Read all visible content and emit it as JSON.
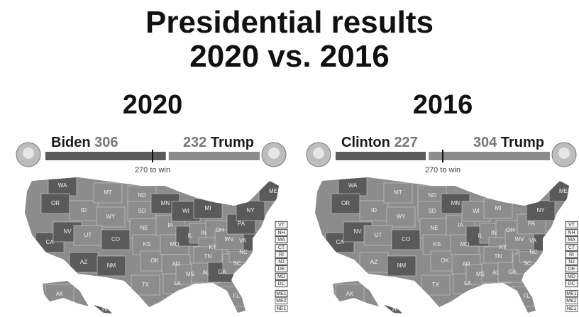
{
  "title": [
    "Presidential results",
    "2020 vs. 2016"
  ],
  "panels": [
    {
      "year": "2020",
      "left": {
        "name": "Biden",
        "votes": 306,
        "color": "#5a5a5a"
      },
      "right": {
        "votes": 232,
        "name": "Trump",
        "color": "#8c8c8c"
      },
      "threshold": "270 to win",
      "states": [
        {
          "label": "WA",
          "color": "#5a5a5a"
        },
        {
          "label": "OR",
          "color": "#5a5a5a"
        },
        {
          "label": "CA",
          "color": "#5a5a5a"
        },
        {
          "label": "NV",
          "color": "#5a5a5a"
        },
        {
          "label": "ID",
          "color": "#8c8c8c"
        },
        {
          "label": "MT",
          "color": "#8c8c8c"
        },
        {
          "label": "WY",
          "color": "#8c8c8c"
        },
        {
          "label": "UT",
          "color": "#8c8c8c"
        },
        {
          "label": "AZ",
          "color": "#5a5a5a"
        },
        {
          "label": "CO",
          "color": "#5a5a5a"
        },
        {
          "label": "NM",
          "color": "#5a5a5a"
        },
        {
          "label": "ND",
          "color": "#8c8c8c"
        },
        {
          "label": "SD",
          "color": "#8c8c8c"
        },
        {
          "label": "NE",
          "color": "#8c8c8c"
        },
        {
          "label": "KS",
          "color": "#8c8c8c"
        },
        {
          "label": "OK",
          "color": "#8c8c8c"
        },
        {
          "label": "TX",
          "color": "#8c8c8c"
        },
        {
          "label": "MN",
          "color": "#5a5a5a"
        },
        {
          "label": "IA",
          "color": "#8c8c8c"
        },
        {
          "label": "MO",
          "color": "#8c8c8c"
        },
        {
          "label": "AR",
          "color": "#8c8c8c"
        },
        {
          "label": "LA",
          "color": "#8c8c8c"
        },
        {
          "label": "WI",
          "color": "#5a5a5a"
        },
        {
          "label": "IL",
          "color": "#5a5a5a"
        },
        {
          "label": "MI",
          "color": "#5a5a5a"
        },
        {
          "label": "IN",
          "color": "#8c8c8c"
        },
        {
          "label": "OH",
          "color": "#8c8c8c"
        },
        {
          "label": "KY",
          "color": "#8c8c8c"
        },
        {
          "label": "TN",
          "color": "#8c8c8c"
        },
        {
          "label": "MS",
          "color": "#8c8c8c"
        },
        {
          "label": "AL",
          "color": "#8c8c8c"
        },
        {
          "label": "GA",
          "color": "#5a5a5a"
        },
        {
          "label": "FL",
          "color": "#8c8c8c"
        },
        {
          "label": "SC",
          "color": "#8c8c8c"
        },
        {
          "label": "NC",
          "color": "#8c8c8c"
        },
        {
          "label": "VA",
          "color": "#5a5a5a"
        },
        {
          "label": "WV",
          "color": "#8c8c8c"
        },
        {
          "label": "PA",
          "color": "#5a5a5a"
        },
        {
          "label": "NY",
          "color": "#5a5a5a"
        },
        {
          "label": "ME",
          "color": "#5a5a5a"
        },
        {
          "label": "AK",
          "color": "#8c8c8c"
        },
        {
          "label": "HI",
          "color": "#5a5a5a"
        }
      ],
      "boxes": [
        {
          "label": "VT",
          "color": "#5a5a5a"
        },
        {
          "label": "NH",
          "color": "#5a5a5a"
        },
        {
          "label": "MA",
          "color": "#5a5a5a"
        },
        {
          "label": "CT",
          "color": "#5a5a5a"
        },
        {
          "label": "RI",
          "color": "#5a5a5a"
        },
        {
          "label": "NJ",
          "color": "#5a5a5a"
        },
        {
          "label": "DE",
          "color": "#5a5a5a"
        },
        {
          "label": "MD",
          "color": "#5a5a5a"
        },
        {
          "label": "DC",
          "color": "#5a5a5a"
        },
        {
          "label": "ME1",
          "color": "#5a5a5a"
        },
        {
          "label": "ME2",
          "color": "#8c8c8c"
        },
        {
          "label": "NE1",
          "color": "#8c8c8c"
        }
      ]
    },
    {
      "year": "2016",
      "left": {
        "name": "Clinton",
        "votes": 227,
        "color": "#5a5a5a"
      },
      "right": {
        "votes": 304,
        "name": "Trump",
        "color": "#8c8c8c"
      },
      "threshold": "270 to win",
      "states": [
        {
          "label": "WA",
          "color": "#5a5a5a"
        },
        {
          "label": "OR",
          "color": "#5a5a5a"
        },
        {
          "label": "CA",
          "color": "#5a5a5a"
        },
        {
          "label": "NV",
          "color": "#5a5a5a"
        },
        {
          "label": "ID",
          "color": "#8c8c8c"
        },
        {
          "label": "MT",
          "color": "#8c8c8c"
        },
        {
          "label": "WY",
          "color": "#8c8c8c"
        },
        {
          "label": "UT",
          "color": "#8c8c8c"
        },
        {
          "label": "AZ",
          "color": "#8c8c8c"
        },
        {
          "label": "CO",
          "color": "#5a5a5a"
        },
        {
          "label": "NM",
          "color": "#5a5a5a"
        },
        {
          "label": "ND",
          "color": "#8c8c8c"
        },
        {
          "label": "SD",
          "color": "#8c8c8c"
        },
        {
          "label": "NE",
          "color": "#8c8c8c"
        },
        {
          "label": "KS",
          "color": "#8c8c8c"
        },
        {
          "label": "OK",
          "color": "#8c8c8c"
        },
        {
          "label": "TX",
          "color": "#8c8c8c"
        },
        {
          "label": "MN",
          "color": "#5a5a5a"
        },
        {
          "label": "IA",
          "color": "#8c8c8c"
        },
        {
          "label": "MO",
          "color": "#8c8c8c"
        },
        {
          "label": "AR",
          "color": "#8c8c8c"
        },
        {
          "label": "LA",
          "color": "#8c8c8c"
        },
        {
          "label": "WI",
          "color": "#8c8c8c"
        },
        {
          "label": "IL",
          "color": "#5a5a5a"
        },
        {
          "label": "MI",
          "color": "#8c8c8c"
        },
        {
          "label": "IN",
          "color": "#8c8c8c"
        },
        {
          "label": "OH",
          "color": "#8c8c8c"
        },
        {
          "label": "KY",
          "color": "#8c8c8c"
        },
        {
          "label": "TN",
          "color": "#8c8c8c"
        },
        {
          "label": "MS",
          "color": "#8c8c8c"
        },
        {
          "label": "AL",
          "color": "#8c8c8c"
        },
        {
          "label": "GA",
          "color": "#8c8c8c"
        },
        {
          "label": "FL",
          "color": "#8c8c8c"
        },
        {
          "label": "SC",
          "color": "#8c8c8c"
        },
        {
          "label": "NC",
          "color": "#8c8c8c"
        },
        {
          "label": "VA",
          "color": "#5a5a5a"
        },
        {
          "label": "WV",
          "color": "#8c8c8c"
        },
        {
          "label": "PA",
          "color": "#8c8c8c"
        },
        {
          "label": "NY",
          "color": "#5a5a5a"
        },
        {
          "label": "ME",
          "color": "#5a5a5a"
        },
        {
          "label": "AK",
          "color": "#8c8c8c"
        },
        {
          "label": "HI",
          "color": "#5a5a5a"
        }
      ],
      "boxes": [
        {
          "label": "VT",
          "color": "#5a5a5a"
        },
        {
          "label": "NH",
          "color": "#5a5a5a"
        },
        {
          "label": "MA",
          "color": "#5a5a5a"
        },
        {
          "label": "CT",
          "color": "#5a5a5a"
        },
        {
          "label": "RI",
          "color": "#5a5a5a"
        },
        {
          "label": "NJ",
          "color": "#5a5a5a"
        },
        {
          "label": "DE",
          "color": "#5a5a5a"
        },
        {
          "label": "MD",
          "color": "#5a5a5a"
        },
        {
          "label": "DC",
          "color": "#5a5a5a"
        },
        {
          "label": "ME1",
          "color": "#5a5a5a"
        },
        {
          "label": "ME2",
          "color": "#8c8c8c"
        },
        {
          "label": "NE1",
          "color": "#8c8c8c"
        }
      ]
    }
  ]
}
